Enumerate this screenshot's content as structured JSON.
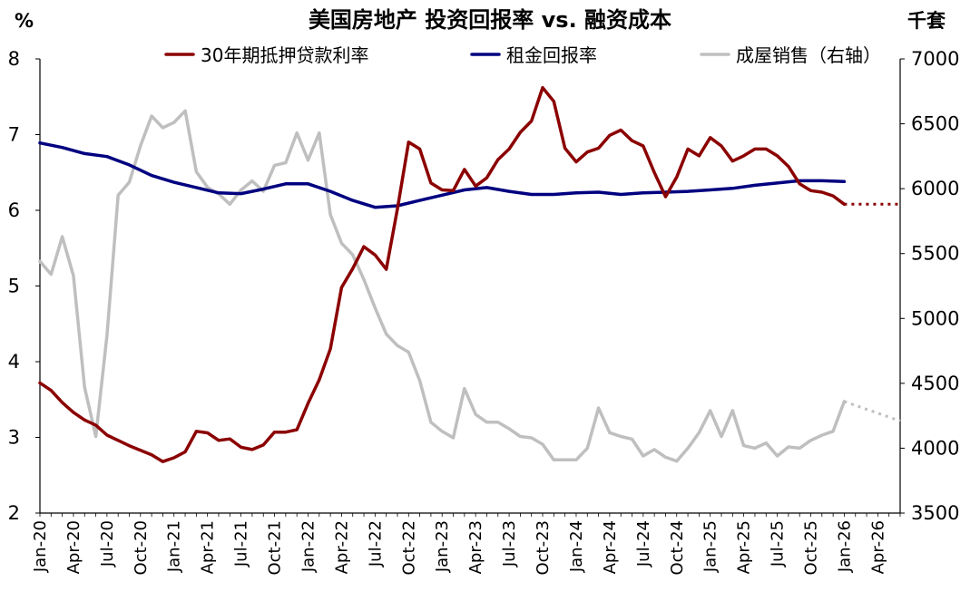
{
  "chart_data": {
    "type": "line",
    "title": "美国房地产 投资回报率 vs. 融资成本",
    "left_axis": {
      "unit": "%",
      "range": [
        2,
        8
      ],
      "ticks": [
        "2",
        "3",
        "4",
        "5",
        "6",
        "7",
        "8"
      ]
    },
    "right_axis": {
      "unit": "千套",
      "range": [
        3500,
        7000
      ],
      "ticks": [
        "3500",
        "4000",
        "4500",
        "5000",
        "5500",
        "6000",
        "6500",
        "7000"
      ]
    },
    "x_range": [
      "2020-01",
      "2026-06"
    ],
    "x_ticks": [
      "Jan-20",
      "Apr-20",
      "Jul-20",
      "Oct-20",
      "Jan-21",
      "Apr-21",
      "Jul-21",
      "Oct-21",
      "Jan-22",
      "Apr-22",
      "Jul-22",
      "Oct-22",
      "Jan-23",
      "Apr-23",
      "Jul-23",
      "Oct-23",
      "Jan-24",
      "Apr-24",
      "Jul-24",
      "Oct-24",
      "Jan-25",
      "Apr-25",
      "Jul-25",
      "Oct-25",
      "Jan-26",
      "Apr-26"
    ],
    "legend_position": "top",
    "grid": false,
    "series": [
      {
        "name": "30年期抵押贷款利率",
        "axis": "left",
        "color": "#8b0000",
        "values": [
          [
            "2020-01",
            3.72
          ],
          [
            "2020-02",
            3.62
          ],
          [
            "2020-03",
            3.46
          ],
          [
            "2020-04",
            3.33
          ],
          [
            "2020-05",
            3.23
          ],
          [
            "2020-06",
            3.16
          ],
          [
            "2020-07",
            3.03
          ],
          [
            "2020-08",
            2.96
          ],
          [
            "2020-09",
            2.89
          ],
          [
            "2020-10",
            2.83
          ],
          [
            "2020-11",
            2.77
          ],
          [
            "2020-12",
            2.68
          ],
          [
            "2021-01",
            2.73
          ],
          [
            "2021-02",
            2.81
          ],
          [
            "2021-03",
            3.08
          ],
          [
            "2021-04",
            3.06
          ],
          [
            "2021-05",
            2.96
          ],
          [
            "2021-06",
            2.98
          ],
          [
            "2021-07",
            2.87
          ],
          [
            "2021-08",
            2.84
          ],
          [
            "2021-09",
            2.9
          ],
          [
            "2021-10",
            3.07
          ],
          [
            "2021-11",
            3.07
          ],
          [
            "2021-12",
            3.1
          ],
          [
            "2022-01",
            3.45
          ],
          [
            "2022-02",
            3.76
          ],
          [
            "2022-03",
            4.17
          ],
          [
            "2022-04",
            4.98
          ],
          [
            "2022-05",
            5.23
          ],
          [
            "2022-06",
            5.52
          ],
          [
            "2022-07",
            5.41
          ],
          [
            "2022-08",
            5.22
          ],
          [
            "2022-09",
            6.02
          ],
          [
            "2022-10",
            6.9
          ],
          [
            "2022-11",
            6.81
          ],
          [
            "2022-12",
            6.36
          ],
          [
            "2023-01",
            6.27
          ],
          [
            "2023-02",
            6.26
          ],
          [
            "2023-03",
            6.54
          ],
          [
            "2023-04",
            6.32
          ],
          [
            "2023-05",
            6.43
          ],
          [
            "2023-06",
            6.67
          ],
          [
            "2023-07",
            6.81
          ],
          [
            "2023-08",
            7.03
          ],
          [
            "2023-09",
            7.18
          ],
          [
            "2023-10",
            7.62
          ],
          [
            "2023-11",
            7.44
          ],
          [
            "2023-12",
            6.82
          ],
          [
            "2024-01",
            6.64
          ],
          [
            "2024-02",
            6.77
          ],
          [
            "2024-03",
            6.82
          ],
          [
            "2024-04",
            6.99
          ],
          [
            "2024-05",
            7.06
          ],
          [
            "2024-06",
            6.92
          ],
          [
            "2024-07",
            6.85
          ],
          [
            "2024-08",
            6.5
          ],
          [
            "2024-09",
            6.18
          ],
          [
            "2024-10",
            6.44
          ],
          [
            "2024-11",
            6.81
          ],
          [
            "2024-12",
            6.72
          ],
          [
            "2025-01",
            6.96
          ],
          [
            "2025-02",
            6.85
          ],
          [
            "2025-03",
            6.65
          ],
          [
            "2025-04",
            6.72
          ],
          [
            "2025-05",
            6.81
          ],
          [
            "2025-06",
            6.81
          ],
          [
            "2025-07",
            6.72
          ],
          [
            "2025-08",
            6.58
          ],
          [
            "2025-09",
            6.35
          ],
          [
            "2025-10",
            6.26
          ],
          [
            "2025-11",
            6.24
          ],
          [
            "2025-12",
            6.19
          ],
          [
            "2026-01",
            6.08
          ]
        ],
        "projection": [
          [
            "2026-01",
            6.08
          ],
          [
            "2026-06",
            6.08
          ]
        ]
      },
      {
        "name": "租金回报率",
        "axis": "left",
        "color": "#000080",
        "values": [
          [
            "2020-01",
            6.89
          ],
          [
            "2020-03",
            6.83
          ],
          [
            "2020-05",
            6.75
          ],
          [
            "2020-07",
            6.71
          ],
          [
            "2020-09",
            6.6
          ],
          [
            "2020-11",
            6.46
          ],
          [
            "2021-01",
            6.37
          ],
          [
            "2021-03",
            6.3
          ],
          [
            "2021-05",
            6.23
          ],
          [
            "2021-07",
            6.22
          ],
          [
            "2021-09",
            6.28
          ],
          [
            "2021-11",
            6.35
          ],
          [
            "2022-01",
            6.35
          ],
          [
            "2022-03",
            6.25
          ],
          [
            "2022-05",
            6.13
          ],
          [
            "2022-07",
            6.04
          ],
          [
            "2022-09",
            6.06
          ],
          [
            "2022-11",
            6.13
          ],
          [
            "2023-01",
            6.2
          ],
          [
            "2023-03",
            6.27
          ],
          [
            "2023-05",
            6.3
          ],
          [
            "2023-07",
            6.25
          ],
          [
            "2023-09",
            6.21
          ],
          [
            "2023-11",
            6.21
          ],
          [
            "2024-01",
            6.23
          ],
          [
            "2024-03",
            6.24
          ],
          [
            "2024-05",
            6.21
          ],
          [
            "2024-07",
            6.23
          ],
          [
            "2024-09",
            6.24
          ],
          [
            "2024-11",
            6.25
          ],
          [
            "2025-01",
            6.27
          ],
          [
            "2025-03",
            6.29
          ],
          [
            "2025-05",
            6.33
          ],
          [
            "2025-07",
            6.36
          ],
          [
            "2025-09",
            6.39
          ],
          [
            "2025-11",
            6.39
          ],
          [
            "2026-01",
            6.38
          ]
        ]
      },
      {
        "name": "成屋销售（右轴）",
        "axis": "right",
        "color": "#bfbfbf",
        "values": [
          [
            "2020-01",
            5440
          ],
          [
            "2020-02",
            5340
          ],
          [
            "2020-03",
            5630
          ],
          [
            "2020-04",
            5330
          ],
          [
            "2020-05",
            4470
          ],
          [
            "2020-06",
            4090
          ],
          [
            "2020-07",
            4870
          ],
          [
            "2020-08",
            5950
          ],
          [
            "2020-09",
            6050
          ],
          [
            "2020-10",
            6330
          ],
          [
            "2020-11",
            6560
          ],
          [
            "2020-12",
            6470
          ],
          [
            "2021-01",
            6510
          ],
          [
            "2021-02",
            6600
          ],
          [
            "2021-03",
            6130
          ],
          [
            "2021-04",
            6010
          ],
          [
            "2021-05",
            5960
          ],
          [
            "2021-06",
            5880
          ],
          [
            "2021-07",
            5990
          ],
          [
            "2021-08",
            6060
          ],
          [
            "2021-09",
            5980
          ],
          [
            "2021-10",
            6180
          ],
          [
            "2021-11",
            6200
          ],
          [
            "2021-12",
            6430
          ],
          [
            "2022-01",
            6220
          ],
          [
            "2022-02",
            6430
          ],
          [
            "2022-03",
            5800
          ],
          [
            "2022-04",
            5580
          ],
          [
            "2022-05",
            5490
          ],
          [
            "2022-06",
            5300
          ],
          [
            "2022-07",
            5080
          ],
          [
            "2022-08",
            4880
          ],
          [
            "2022-09",
            4790
          ],
          [
            "2022-10",
            4740
          ],
          [
            "2022-11",
            4520
          ],
          [
            "2022-12",
            4200
          ],
          [
            "2023-01",
            4130
          ],
          [
            "2023-02",
            4080
          ],
          [
            "2023-03",
            4460
          ],
          [
            "2023-04",
            4260
          ],
          [
            "2023-05",
            4200
          ],
          [
            "2023-06",
            4200
          ],
          [
            "2023-07",
            4150
          ],
          [
            "2023-08",
            4090
          ],
          [
            "2023-09",
            4080
          ],
          [
            "2023-10",
            4030
          ],
          [
            "2023-11",
            3910
          ],
          [
            "2023-12",
            3910
          ],
          [
            "2024-01",
            3910
          ],
          [
            "2024-02",
            4000
          ],
          [
            "2024-03",
            4310
          ],
          [
            "2024-04",
            4120
          ],
          [
            "2024-05",
            4090
          ],
          [
            "2024-06",
            4070
          ],
          [
            "2024-07",
            3940
          ],
          [
            "2024-08",
            3990
          ],
          [
            "2024-09",
            3930
          ],
          [
            "2024-10",
            3900
          ],
          [
            "2024-11",
            4000
          ],
          [
            "2024-12",
            4120
          ],
          [
            "2025-01",
            4290
          ],
          [
            "2025-02",
            4090
          ],
          [
            "2025-03",
            4290
          ],
          [
            "2025-04",
            4020
          ],
          [
            "2025-05",
            4000
          ],
          [
            "2025-06",
            4040
          ],
          [
            "2025-07",
            3940
          ],
          [
            "2025-08",
            4010
          ],
          [
            "2025-09",
            4000
          ],
          [
            "2025-10",
            4060
          ],
          [
            "2025-11",
            4100
          ],
          [
            "2025-12",
            4130
          ],
          [
            "2026-01",
            4360
          ]
        ],
        "projection": [
          [
            "2026-01",
            4360
          ],
          [
            "2026-06",
            4210
          ]
        ]
      }
    ]
  }
}
